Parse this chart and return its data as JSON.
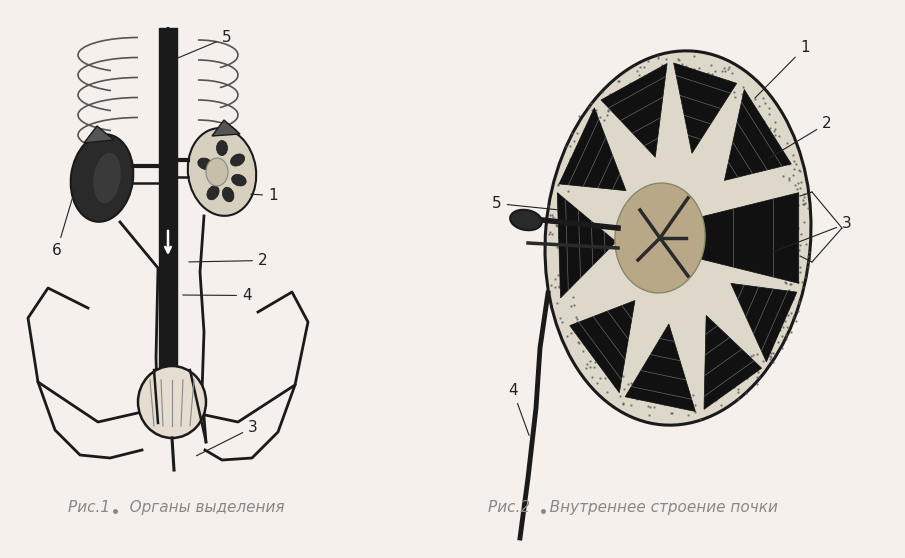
{
  "background_color": "#f5f0eb",
  "fig1_caption": "Рис.1    Органы выделения",
  "fig2_caption": "Рис.2    Внутреннее строение почки",
  "caption_color": "#888888",
  "caption_fontsize": 11,
  "fig_width": 9.05,
  "fig_height": 5.58,
  "dpi": 100,
  "line_color": "#1a1a1a",
  "fill_color": "#2a2a2a",
  "label_fontsize": 11,
  "label_color": "#222222"
}
